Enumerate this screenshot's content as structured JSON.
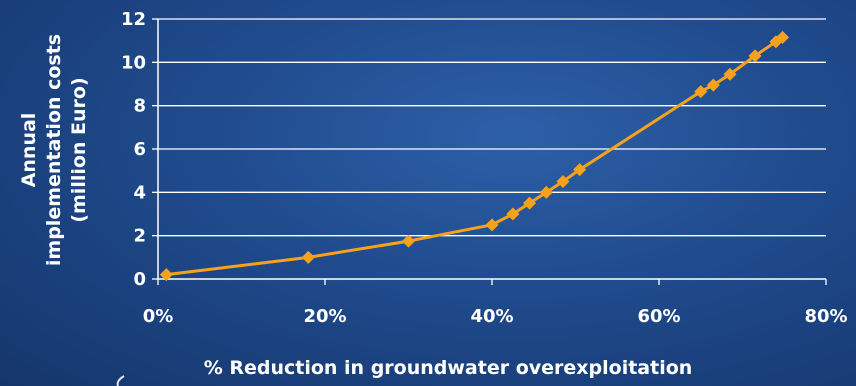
{
  "chart_data": {
    "type": "line",
    "title": "",
    "xlabel": "% Reduction in groundwater overexploitation",
    "ylabel_lines": [
      "Annual",
      "implementation costs",
      "(million Euro)"
    ],
    "xlim": [
      0,
      0.8
    ],
    "ylim": [
      0,
      12
    ],
    "x_ticks": [
      0,
      0.2,
      0.4,
      0.6,
      0.8
    ],
    "x_tick_labels": [
      "0%",
      "20%",
      "40%",
      "60%",
      "80%"
    ],
    "y_ticks": [
      0,
      2,
      4,
      6,
      8,
      10,
      12
    ],
    "y_tick_labels": [
      "0",
      "2",
      "4",
      "6",
      "8",
      "10",
      "12"
    ],
    "grid": "horizontal",
    "legend": "none",
    "series": [
      {
        "color": "#f7a21b",
        "marker": "diamond",
        "points": [
          [
            0.01,
            0.2
          ],
          [
            0.18,
            1.0
          ],
          [
            0.3,
            1.75
          ],
          [
            0.4,
            2.5
          ],
          [
            0.425,
            3.0
          ],
          [
            0.445,
            3.5
          ],
          [
            0.465,
            4.0
          ],
          [
            0.485,
            4.5
          ],
          [
            0.505,
            5.05
          ],
          [
            0.65,
            8.65
          ],
          [
            0.665,
            8.95
          ],
          [
            0.685,
            9.45
          ],
          [
            0.715,
            10.3
          ],
          [
            0.74,
            10.95
          ],
          [
            0.748,
            11.15
          ]
        ]
      }
    ]
  }
}
